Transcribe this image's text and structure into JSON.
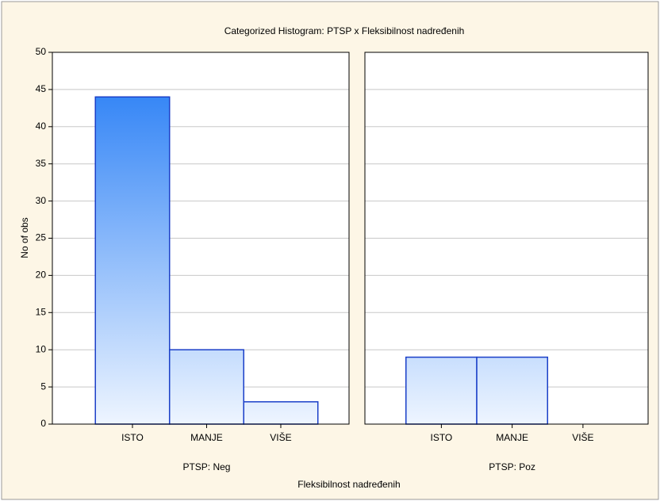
{
  "chart_data": {
    "type": "bar",
    "title": "Categorized Histogram: PTSP x Fleksibilnost nadređenih",
    "ylabel": "No of obs",
    "xlabel": "Fleksibilnost nadređenih",
    "categories": [
      "ISTO",
      "MANJE",
      "VIŠE"
    ],
    "ylim": [
      0,
      50
    ],
    "yticks": [
      0,
      5,
      10,
      15,
      20,
      25,
      30,
      35,
      40,
      45,
      50
    ],
    "grid": true,
    "color": "#1e78f5",
    "panels": [
      {
        "name": "PTSP: Neg",
        "values": [
          44,
          10,
          3
        ]
      },
      {
        "name": "PTSP: Poz",
        "values": [
          9,
          9,
          0
        ]
      }
    ]
  }
}
